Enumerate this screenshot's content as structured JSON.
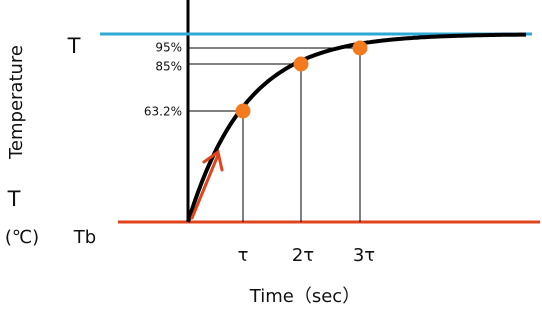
{
  "labels": {
    "top_level": "T",
    "y_axis_title": "Temperature",
    "bottom_symbol": "T",
    "unit": "(℃)",
    "base_level": "Tb",
    "x_axis_title": "Time（sec）",
    "levels": [
      "95%",
      "85%",
      "63.2%"
    ],
    "times": [
      "τ",
      "2τ",
      "3τ"
    ]
  }
}
